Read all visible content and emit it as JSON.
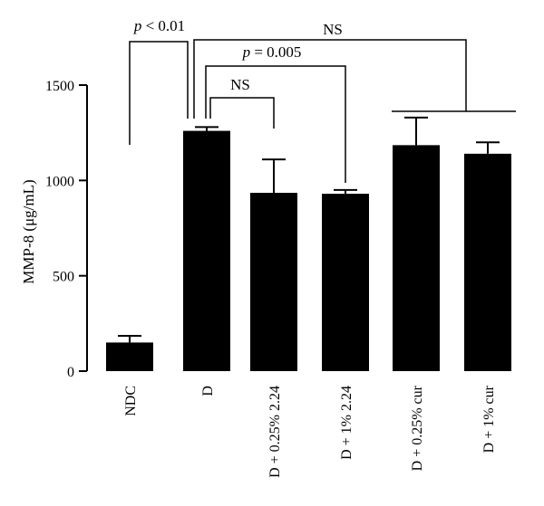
{
  "chart_data": {
    "type": "bar",
    "ylabel": "MMP-8 (μg/mL)",
    "ylim": [
      0,
      1500
    ],
    "yticks": [
      "0",
      "500",
      "1000",
      "1500"
    ],
    "categories": [
      "NDC",
      "D",
      "D + 0.25% 2.24",
      "D + 1% 2.24",
      "D + 0.25% cur",
      "D + 1% cur"
    ],
    "values": [
      150,
      1260,
      935,
      930,
      1185,
      1140
    ],
    "errors": [
      35,
      20,
      175,
      20,
      145,
      60
    ],
    "bar_color": "#000000",
    "annotations": [
      {
        "label": "p < 0.01",
        "from": "NDC",
        "to": "D"
      },
      {
        "label": "NS",
        "from": "D",
        "to": "D + 0.25% cur / D + 1% cur"
      },
      {
        "label": "p = 0.005",
        "from": "D",
        "to": "D + 1% 2.24"
      },
      {
        "label": "NS",
        "from": "D",
        "to": "D + 0.25% 2.24"
      }
    ]
  }
}
